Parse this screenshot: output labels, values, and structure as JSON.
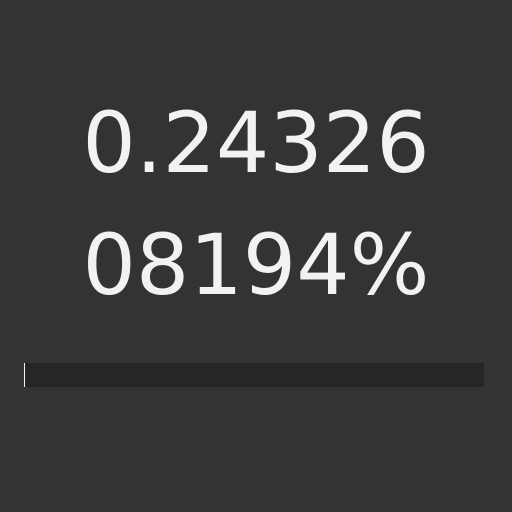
{
  "readout": {
    "line1": "0.24326",
    "line2": "08194%"
  },
  "progress": {
    "percent": 0.2432608194
  },
  "colors": {
    "background": "#333333",
    "text": "#f2f2f2",
    "track": "#262626",
    "fill": "#f2f2f2"
  }
}
